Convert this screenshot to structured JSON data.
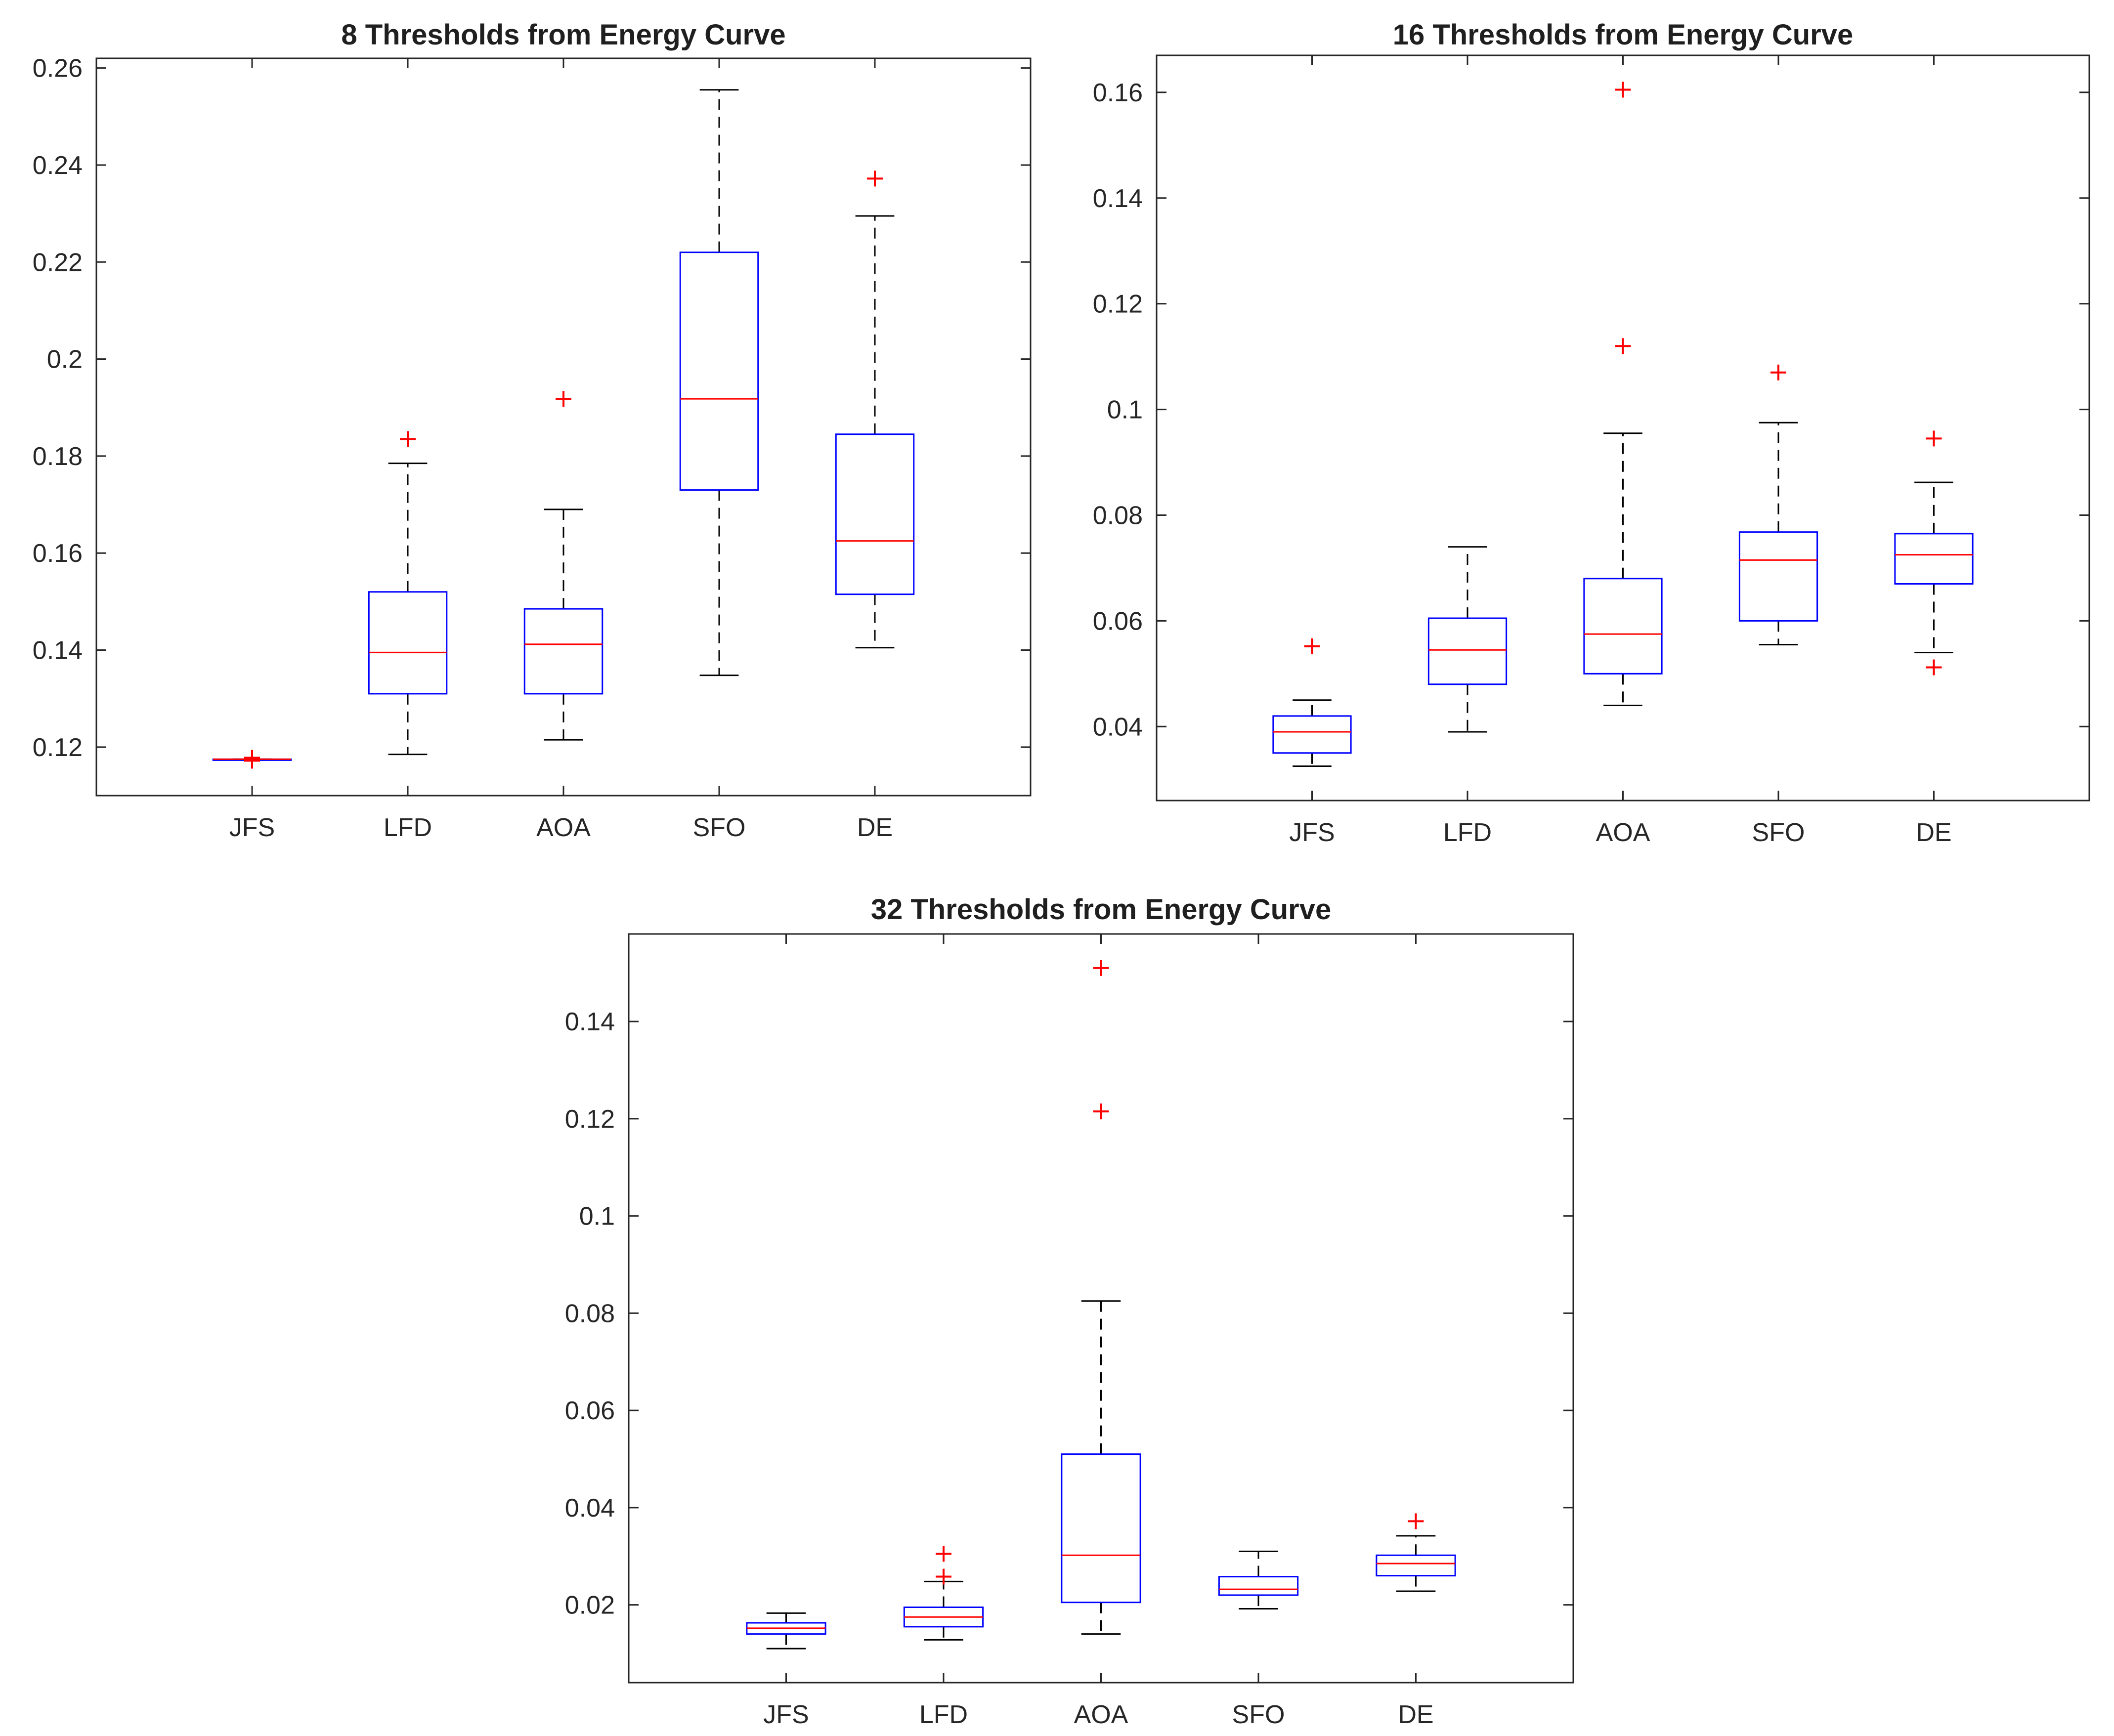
{
  "colors": {
    "box": "#0000ff",
    "median": "#ff0000",
    "whisker": "#000000",
    "outlier": "#ff0000",
    "axes": "#262626"
  },
  "chart_data": [
    {
      "type": "boxplot",
      "title": "8 Thresholds from Energy Curve",
      "categories": [
        "JFS",
        "LFD",
        "AOA",
        "SFO",
        "DE"
      ],
      "ylim": [
        0.11,
        0.262
      ],
      "yticks": [
        0.12,
        0.14,
        0.16,
        0.18,
        0.2,
        0.22,
        0.24,
        0.26
      ],
      "ytick_labels": [
        "0.12",
        "0.14",
        "0.16",
        "0.18",
        "0.2",
        "0.22",
        "0.24",
        "0.26"
      ],
      "boxes": [
        {
          "label": "JFS",
          "whisker_low": 0.1175,
          "q1": 0.1175,
          "median": 0.1175,
          "q3": 0.1175,
          "whisker_high": 0.1175,
          "outliers": [
            0.1172,
            0.1175,
            0.1178
          ]
        },
        {
          "label": "LFD",
          "whisker_low": 0.1185,
          "q1": 0.131,
          "median": 0.1395,
          "q3": 0.152,
          "whisker_high": 0.1785,
          "outliers": [
            0.1835
          ]
        },
        {
          "label": "AOA",
          "whisker_low": 0.1215,
          "q1": 0.131,
          "median": 0.1412,
          "q3": 0.1485,
          "whisker_high": 0.169,
          "outliers": [
            0.1918
          ]
        },
        {
          "label": "SFO",
          "whisker_low": 0.1348,
          "q1": 0.173,
          "median": 0.1918,
          "q3": 0.222,
          "whisker_high": 0.2555,
          "outliers": []
        },
        {
          "label": "DE",
          "whisker_low": 0.1405,
          "q1": 0.1515,
          "median": 0.1625,
          "q3": 0.1845,
          "whisker_high": 0.2295,
          "outliers": [
            0.2372
          ]
        }
      ]
    },
    {
      "type": "boxplot",
      "title": "16 Thresholds from Energy Curve",
      "categories": [
        "JFS",
        "LFD",
        "AOA",
        "SFO",
        "DE"
      ],
      "ylim": [
        0.026,
        0.167
      ],
      "yticks": [
        0.04,
        0.06,
        0.08,
        0.1,
        0.12,
        0.14,
        0.16
      ],
      "ytick_labels": [
        "0.04",
        "0.06",
        "0.08",
        "0.1",
        "0.12",
        "0.14",
        "0.16"
      ],
      "boxes": [
        {
          "label": "JFS",
          "whisker_low": 0.0325,
          "q1": 0.035,
          "median": 0.039,
          "q3": 0.042,
          "whisker_high": 0.045,
          "outliers": [
            0.0552
          ]
        },
        {
          "label": "LFD",
          "whisker_low": 0.039,
          "q1": 0.048,
          "median": 0.0545,
          "q3": 0.0605,
          "whisker_high": 0.074,
          "outliers": []
        },
        {
          "label": "AOA",
          "whisker_low": 0.044,
          "q1": 0.05,
          "median": 0.0575,
          "q3": 0.068,
          "whisker_high": 0.0955,
          "outliers": [
            0.112,
            0.1605
          ]
        },
        {
          "label": "SFO",
          "whisker_low": 0.0555,
          "q1": 0.06,
          "median": 0.0715,
          "q3": 0.0768,
          "whisker_high": 0.0975,
          "outliers": [
            0.107
          ]
        },
        {
          "label": "DE",
          "whisker_low": 0.054,
          "q1": 0.067,
          "median": 0.0725,
          "q3": 0.0765,
          "whisker_high": 0.0862,
          "outliers": [
            0.0945,
            0.0512
          ]
        }
      ]
    },
    {
      "type": "boxplot",
      "title": "32 Thresholds from Energy Curve",
      "categories": [
        "JFS",
        "LFD",
        "AOA",
        "SFO",
        "DE"
      ],
      "ylim": [
        0.004,
        0.158
      ],
      "yticks": [
        0.02,
        0.04,
        0.06,
        0.08,
        0.1,
        0.12,
        0.14
      ],
      "ytick_labels": [
        "0.02",
        "0.04",
        "0.06",
        "0.08",
        "0.1",
        "0.12",
        "0.14"
      ],
      "boxes": [
        {
          "label": "JFS",
          "whisker_low": 0.011,
          "q1": 0.014,
          "median": 0.0152,
          "q3": 0.0163,
          "whisker_high": 0.0183,
          "outliers": []
        },
        {
          "label": "LFD",
          "whisker_low": 0.0128,
          "q1": 0.0155,
          "median": 0.0175,
          "q3": 0.0195,
          "whisker_high": 0.0248,
          "outliers": [
            0.0258,
            0.0305
          ]
        },
        {
          "label": "AOA",
          "whisker_low": 0.014,
          "q1": 0.0205,
          "median": 0.0302,
          "q3": 0.051,
          "whisker_high": 0.0825,
          "outliers": [
            0.1215,
            0.151
          ]
        },
        {
          "label": "SFO",
          "whisker_low": 0.0192,
          "q1": 0.022,
          "median": 0.0232,
          "q3": 0.0258,
          "whisker_high": 0.031,
          "outliers": []
        },
        {
          "label": "DE",
          "whisker_low": 0.0228,
          "q1": 0.026,
          "median": 0.0285,
          "q3": 0.0302,
          "whisker_high": 0.0342,
          "outliers": [
            0.0372
          ]
        }
      ]
    }
  ]
}
